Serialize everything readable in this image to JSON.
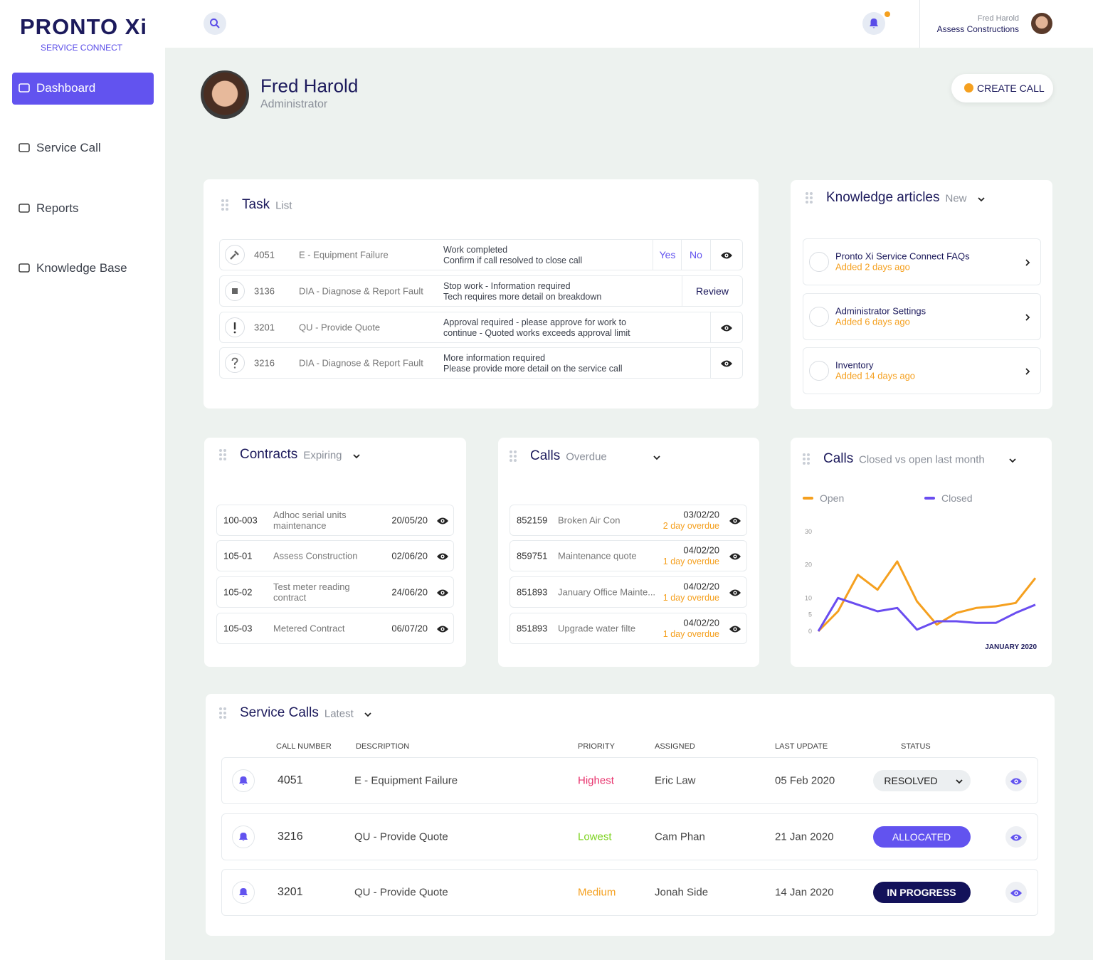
{
  "brand": {
    "name": "PRONTO Xi",
    "tagline": "SERVICE CONNECT"
  },
  "nav": [
    "Dashboard",
    "Service Call",
    "Reports",
    "Knowledge Base"
  ],
  "header": {
    "user_name": "Fred Harold",
    "company": "Assess Constructions"
  },
  "profile": {
    "name": "Fred Harold",
    "role": "Administrator",
    "action": "CREATE CALL"
  },
  "tasks": {
    "title": "Task",
    "subtitle": "List",
    "rows": [
      {
        "id": "4051",
        "type": "E - Equipment Failure",
        "line1": "Work completed",
        "line2": "Confirm if call resolved to close call",
        "actions": [
          "Yes",
          "No"
        ]
      },
      {
        "id": "3136",
        "type": "DIA - Diagnose & Report Fault",
        "line1": "Stop work - Information required",
        "line2": "Tech requires more detail on breakdown",
        "actions": [
          "Review"
        ]
      },
      {
        "id": "3201",
        "type": "QU - Provide Quote",
        "line1": "Approval required - please approve for work to",
        "line2": "continue - Quoted works exceeds approval limit"
      },
      {
        "id": "3216",
        "type": "DIA - Diagnose & Report Fault",
        "line1": "More information required",
        "line2": "Please provide more detail on the  service call"
      }
    ]
  },
  "knowledge": {
    "title": "Knowledge articles",
    "subtitle": "New",
    "items": [
      {
        "title": "Pronto Xi Service Connect FAQs",
        "added": "Added 2 days ago"
      },
      {
        "title": "Administrator Settings",
        "added": "Added 6 days ago"
      },
      {
        "title": "Inventory",
        "added": "Added 14 days ago"
      }
    ]
  },
  "contracts": {
    "title": "Contracts",
    "subtitle": "Expiring",
    "rows": [
      {
        "id": "100-003",
        "description": "Adhoc serial units maintenance",
        "date": "20/05/20"
      },
      {
        "id": "105-01",
        "description": "Assess Construction",
        "date": "02/06/20"
      },
      {
        "id": "105-02",
        "description": "Test meter reading contract",
        "date": "24/06/20"
      },
      {
        "id": "105-03",
        "description": "Metered Contract",
        "date": "06/07/20"
      }
    ]
  },
  "calls_overdue": {
    "title": "Calls",
    "subtitle": "Overdue",
    "rows": [
      {
        "id": "852159",
        "description": "Broken Air Con",
        "date": "03/02/20",
        "overdue": "2 day overdue"
      },
      {
        "id": "859751",
        "description": "Maintenance quote",
        "date": "04/02/20",
        "overdue": "1 day overdue"
      },
      {
        "id": "851893",
        "description": "January Office Mainte...",
        "date": "04/02/20",
        "overdue": "1 day overdue"
      },
      {
        "id": "851893",
        "description": "Upgrade water filte",
        "date": "04/02/20",
        "overdue": "1 day overdue"
      }
    ]
  },
  "chart_data": {
    "type": "line",
    "title": "Calls",
    "subtitle": "Closed vs open last month",
    "x_label": "JANUARY 2020",
    "categories": [
      null,
      null,
      null,
      null,
      null,
      null,
      null,
      null,
      null,
      null,
      null,
      null
    ],
    "series": [
      {
        "name": "Open",
        "color": "#f5a01f",
        "values": [
          0,
          6,
          17,
          12.5,
          21,
          9,
          2,
          5.5,
          7,
          7.5,
          8.5,
          16
        ]
      },
      {
        "name": "Closed",
        "color": "#6a4df0",
        "values": [
          0,
          10,
          8,
          6,
          7,
          0.5,
          3,
          3,
          2.5,
          2.5,
          5.5,
          8
        ]
      }
    ],
    "ylim": [
      0,
      30
    ],
    "yticks": [
      0,
      5,
      10,
      20,
      30
    ],
    "legend": "top"
  },
  "service_calls": {
    "title": "Service Calls",
    "subtitle": "Latest",
    "columns": [
      "CALL NUMBER",
      "DESCRIPTION",
      "PRIORITY",
      "ASSIGNED",
      "LAST UPDATE",
      "STATUS"
    ],
    "rows": [
      {
        "number": "4051",
        "description": "E - Equipment Failure",
        "priority": "Highest",
        "assigned": "Eric Law",
        "last_update": "05 Feb 2020",
        "status": "RESOLVED"
      },
      {
        "number": "3216",
        "description": "QU - Provide Quote",
        "priority": "Lowest",
        "assigned": "Cam Phan",
        "last_update": "21 Jan 2020",
        "status": "ALLOCATED"
      },
      {
        "number": "3201",
        "description": "QU - Provide Quote",
        "priority": "Medium",
        "assigned": "Jonah Side",
        "last_update": "14 Jan 2020",
        "status": "IN PROGRESS"
      }
    ]
  }
}
